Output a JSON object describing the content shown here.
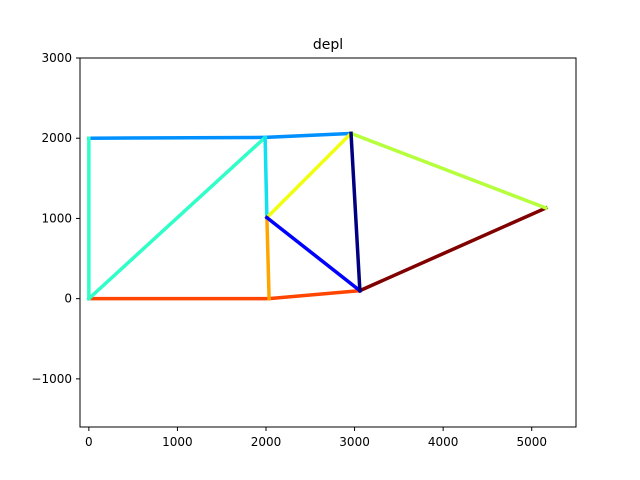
{
  "chart_data": {
    "type": "line",
    "title": "depl",
    "xlabel": "",
    "ylabel": "",
    "xlim": [
      -100,
      5500
    ],
    "ylim": [
      -1600,
      3000
    ],
    "xticks": [
      0,
      1000,
      2000,
      3000,
      4000,
      5000
    ],
    "yticks": [
      -1000,
      0,
      1000,
      2000,
      3000
    ],
    "xtick_labels": [
      "0",
      "1000",
      "2000",
      "3000",
      "4000",
      "5000"
    ],
    "ytick_labels": [
      "−1000",
      "0",
      "1000",
      "2000",
      "3000"
    ],
    "grid": false,
    "segments": [
      {
        "x": [
          0,
          2035
        ],
        "y": [
          0,
          0
        ],
        "color": "#ff4500"
      },
      {
        "x": [
          2035,
          3060
        ],
        "y": [
          0,
          100
        ],
        "color": "#ff4500"
      },
      {
        "x": [
          3060,
          5160
        ],
        "y": [
          100,
          1130
        ],
        "color": "#800000"
      },
      {
        "x": [
          2960,
          5160
        ],
        "y": [
          2060,
          1130
        ],
        "color": "#b5ff3c"
      },
      {
        "x": [
          1990,
          2960
        ],
        "y": [
          2010,
          2060
        ],
        "color": "#0090ff"
      },
      {
        "x": [
          0,
          1990
        ],
        "y": [
          2000,
          2010
        ],
        "color": "#0090ff"
      },
      {
        "x": [
          0,
          0
        ],
        "y": [
          0,
          2000
        ],
        "color": "#30ffc8"
      },
      {
        "x": [
          0,
          1990
        ],
        "y": [
          0,
          2010
        ],
        "color": "#30ffc8"
      },
      {
        "x": [
          1990,
          2010
        ],
        "y": [
          2010,
          1010
        ],
        "color": "#10e0f0"
      },
      {
        "x": [
          2010,
          2960
        ],
        "y": [
          1010,
          2060
        ],
        "color": "#f0ff10"
      },
      {
        "x": [
          2010,
          2035
        ],
        "y": [
          1010,
          0
        ],
        "color": "#ffa500"
      },
      {
        "x": [
          2010,
          3060
        ],
        "y": [
          1010,
          100
        ],
        "color": "#0000ff"
      },
      {
        "x": [
          2960,
          3060
        ],
        "y": [
          2060,
          100
        ],
        "color": "#000080"
      }
    ]
  }
}
